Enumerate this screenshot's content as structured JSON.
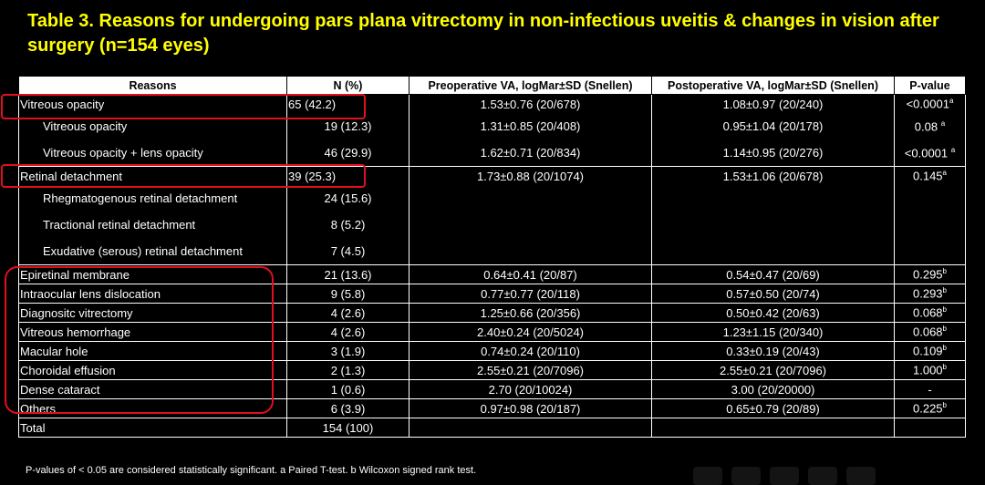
{
  "title": "Table 3. Reasons for undergoing pars plana vitrectomy in non-infectious uveitis & changes in vision after surgery (n=154 eyes)",
  "headers": {
    "reasons": "Reasons",
    "n": "N (%)",
    "pre": "Preoperative VA, logMar±SD (Snellen)",
    "post": "Postoperative VA, logMar±SD (Snellen)",
    "p": "P-value"
  },
  "rows": {
    "vo_main": {
      "reason": "Vitreous opacity",
      "n": "65 (42.2)",
      "pre": "1.53±0.76 (20/678)",
      "post": "1.08±0.97 (20/240)",
      "p": "<0.0001",
      "sup": "a"
    },
    "vo_sub1": {
      "reason": "Vitreous opacity",
      "n": "19 (12.3)",
      "pre": "1.31±0.85 (20/408)",
      "post": "0.95±1.04 (20/178)",
      "p": "0.08",
      "sup": "a"
    },
    "vo_sub2": {
      "reason": "Vitreous opacity + lens opacity",
      "n": "46 (29.9)",
      "pre": "1.62±0.71 (20/834)",
      "post": "1.14±0.95 (20/276)",
      "p": "<0.0001",
      "sup": "a"
    },
    "rd_main": {
      "reason": "Retinal detachment",
      "n": "39 (25.3)",
      "pre": "1.73±0.88 (20/1074)",
      "post": "1.53±1.06 (20/678)",
      "p": "0.145",
      "sup": "a"
    },
    "rd_sub1": {
      "reason": "Rhegmatogenous retinal detachment",
      "n": "24 (15.6)"
    },
    "rd_sub2": {
      "reason": "Tractional retinal detachment",
      "n": "8 (5.2)"
    },
    "rd_sub3": {
      "reason": "Exudative (serous) retinal detachment",
      "n": "7 (4.5)"
    },
    "erm": {
      "reason": "Epiretinal membrane",
      "n": "21 (13.6)",
      "pre": "0.64±0.41 (20/87)",
      "post": "0.54±0.47 (20/69)",
      "p": "0.295",
      "sup": "b"
    },
    "iol": {
      "reason": "Intraocular lens dislocation",
      "n": "9 (5.8)",
      "pre": "0.77±0.77 (20/118)",
      "post": "0.57±0.50 (20/74)",
      "p": "0.293",
      "sup": "b"
    },
    "diag": {
      "reason": "Diagnositc vitrectomy",
      "n": "4 (2.6)",
      "pre": "1.25±0.66 (20/356)",
      "post": "0.50±0.42 (20/63)",
      "p": "0.068",
      "sup": "b"
    },
    "vh": {
      "reason": "Vitreous hemorrhage",
      "n": "4 (2.6)",
      "pre": "2.40±0.24 (20/5024)",
      "post": "1.23±1.15 (20/340)",
      "p": "0.068",
      "sup": "b"
    },
    "mh": {
      "reason": "Macular hole",
      "n": "3 (1.9)",
      "pre": "0.74±0.24 (20/110)",
      "post": "0.33±0.19 (20/43)",
      "p": "0.109",
      "sup": "b"
    },
    "ce": {
      "reason": "Choroidal effusion",
      "n": "2 (1.3)",
      "pre": "2.55±0.21 (20/7096)",
      "post": "2.55±0.21 (20/7096)",
      "p": "1.000",
      "sup": "b"
    },
    "dc": {
      "reason": "Dense cataract",
      "n": "1 (0.6)",
      "pre": "2.70 (20/10024)",
      "post": "3.00 (20/20000)",
      "p": "-",
      "sup": ""
    },
    "others": {
      "reason": "Others",
      "n": "6 (3.9)",
      "pre": "0.97±0.98 (20/187)",
      "post": "0.65±0.79 (20/89)",
      "p": "0.225",
      "sup": "b"
    },
    "total": {
      "reason": "Total",
      "n": "154 (100)"
    }
  },
  "footnote": "P-values of < 0.05 are considered statistically significant. a Paired T-test. b Wilcoxon signed rank test.",
  "colors": {
    "title": "#ffff00",
    "background": "#000000",
    "highlight_box": "#e0101e",
    "header_bg": "#ffffff"
  }
}
